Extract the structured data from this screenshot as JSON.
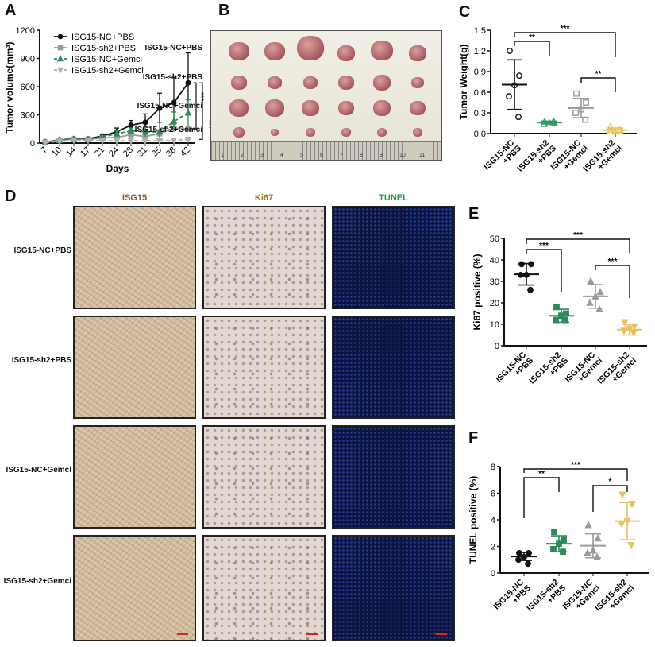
{
  "panels": {
    "A": "A",
    "B": "B",
    "C": "C",
    "D": "D",
    "E": "E",
    "F": "F"
  },
  "groups": [
    "ISG15-NC+PBS",
    "ISG15-sh2+PBS",
    "ISG15-NC+Gemci",
    "ISG15-sh2+Gemci"
  ],
  "panel_b": {
    "ruler_numbers": [
      "1",
      "2",
      "3",
      "4",
      "5",
      "6",
      "7",
      "8",
      "9",
      "10",
      "11"
    ]
  },
  "panel_d": {
    "columns": [
      "ISG15",
      "Ki67",
      "TUNEL"
    ],
    "column_colors": [
      "#8a5a2a",
      "#9a7a20",
      "#2a9a3a"
    ],
    "rows": [
      "ISG15-NC+PBS",
      "ISG15-sh2+PBS",
      "ISG15-NC+Gemci",
      "ISG15-sh2+Gemci"
    ]
  },
  "chart_data": [
    {
      "id": "A",
      "type": "line",
      "xlabel": "Days",
      "ylabel": "Tumor volume(mm³)",
      "ylim": [
        0,
        1200
      ],
      "yticks": [
        0,
        300,
        600,
        900,
        1200
      ],
      "categories": [
        "7",
        "10",
        "14",
        "17",
        "21",
        "24",
        "28",
        "31",
        "35",
        "38",
        "42"
      ],
      "legend": "top-left",
      "series": [
        {
          "name": "ISG15-NC+PBS",
          "color": "#111111",
          "marker": "circle",
          "dash": false,
          "values": [
            10,
            35,
            45,
            45,
            75,
            120,
            190,
            220,
            370,
            430,
            640
          ],
          "err": [
            5,
            10,
            10,
            10,
            20,
            40,
            50,
            90,
            160,
            270,
            320
          ]
        },
        {
          "name": "ISG15-sh2+PBS",
          "color": "#9a9a9a",
          "marker": "square",
          "dash": false,
          "values": [
            10,
            30,
            40,
            40,
            55,
            60,
            90,
            70,
            100,
            160,
            150
          ],
          "err": [
            5,
            8,
            8,
            8,
            15,
            20,
            25,
            25,
            30,
            40,
            20
          ]
        },
        {
          "name": "ISG15-NC+Gemci",
          "color": "#2a8a5a",
          "marker": "triangle",
          "dash": true,
          "values": [
            10,
            30,
            40,
            40,
            65,
            100,
            130,
            120,
            120,
            230,
            320
          ],
          "err": [
            5,
            8,
            8,
            8,
            15,
            30,
            30,
            50,
            100,
            100,
            140
          ]
        },
        {
          "name": "ISG15-sh2+Gemci",
          "color": "#b0b0b0",
          "marker": "tri-down",
          "dash": true,
          "values": [
            5,
            20,
            30,
            30,
            25,
            25,
            25,
            25,
            25,
            30,
            40
          ],
          "err": [
            3,
            5,
            5,
            5,
            5,
            5,
            5,
            5,
            5,
            10,
            20
          ]
        }
      ],
      "significance": [
        "***",
        "***"
      ]
    },
    {
      "id": "C",
      "type": "scatter",
      "ylabel": "Tumor Weight(g)",
      "ylim": [
        0,
        1.5
      ],
      "yticks": [
        "0.0",
        "0.3",
        "0.6",
        "0.9",
        "1.2",
        "1.5"
      ],
      "categories": [
        [
          "ISG15-NC",
          "+PBS"
        ],
        [
          "ISG15-sh2",
          "+PBS"
        ],
        [
          "ISG15-NC",
          "+Gemci"
        ],
        [
          "ISG15-sh2",
          "+Gemci"
        ]
      ],
      "groups": [
        {
          "color": "#111111",
          "marker": "circle-open",
          "points": [
            1.2,
            0.84,
            0.7,
            0.54,
            0.24
          ],
          "mean": 0.71,
          "sd": 0.36
        },
        {
          "color": "#2a9a5a",
          "marker": "triangle-open",
          "points": [
            0.17,
            0.16,
            0.15,
            0.14,
            0.17
          ],
          "mean": 0.16,
          "sd": 0.02
        },
        {
          "color": "#9a9a9a",
          "marker": "square-open",
          "points": [
            0.58,
            0.45,
            0.35,
            0.3,
            0.2
          ],
          "mean": 0.37,
          "sd": 0.14
        },
        {
          "color": "#e8c060",
          "marker": "triangle-open",
          "points": [
            0.1,
            0.05,
            0.04,
            0.03,
            0.04
          ],
          "mean": 0.05,
          "sd": 0.03
        }
      ],
      "brackets": [
        {
          "from": 0,
          "to": 1,
          "label": "**"
        },
        {
          "from": 0,
          "to": 3,
          "label": "***"
        },
        {
          "from": 2,
          "to": 3,
          "label": "**"
        }
      ]
    },
    {
      "id": "E",
      "type": "scatter",
      "ylabel": "Ki67 positive (%)",
      "ylim": [
        0,
        50
      ],
      "yticks": [
        "0",
        "10",
        "20",
        "30",
        "40",
        "50"
      ],
      "categories": [
        [
          "ISG15-NC",
          "+PBS"
        ],
        [
          "ISG15-sh2",
          "+PBS"
        ],
        [
          "ISG15-NC",
          "+Gemci"
        ],
        [
          "ISG15-sh2",
          "+Gemci"
        ]
      ],
      "groups": [
        {
          "color": "#111111",
          "marker": "circle",
          "points": [
            38,
            38,
            33,
            33,
            26
          ],
          "mean": 33.3,
          "sd": 5
        },
        {
          "color": "#2a8a5a",
          "marker": "square",
          "points": [
            18,
            15,
            14,
            12,
            12
          ],
          "mean": 14,
          "sd": 3
        },
        {
          "color": "#9a9a9a",
          "marker": "triangle",
          "points": [
            30,
            25,
            23,
            20,
            17
          ],
          "mean": 23,
          "sd": 5.5
        },
        {
          "color": "#e8c060",
          "marker": "tri-down",
          "points": [
            11,
            9,
            8,
            7,
            6
          ],
          "mean": 7.5,
          "sd": 2.5
        }
      ],
      "brackets": [
        {
          "from": 0,
          "to": 1,
          "label": "***"
        },
        {
          "from": 0,
          "to": 3,
          "label": "***"
        },
        {
          "from": 2,
          "to": 3,
          "label": "***"
        }
      ]
    },
    {
      "id": "F",
      "type": "scatter",
      "ylabel": "TUNEL positive (%)",
      "ylim": [
        0,
        8
      ],
      "yticks": [
        "0",
        "2",
        "4",
        "6",
        "8"
      ],
      "categories": [
        [
          "ISG15-NC",
          "+PBS"
        ],
        [
          "ISG15-sh2",
          "+PBS"
        ],
        [
          "ISG15-NC",
          "+Gemci"
        ],
        [
          "ISG15-sh2",
          "+Gemci"
        ]
      ],
      "groups": [
        {
          "color": "#111111",
          "marker": "circle",
          "points": [
            1.5,
            1.5,
            1.2,
            1.0,
            0.7
          ],
          "mean": 1.25,
          "sd": 0.3
        },
        {
          "color": "#2a8a5a",
          "marker": "square",
          "points": [
            3.1,
            2.5,
            2.2,
            1.8,
            1.6
          ],
          "mean": 2.2,
          "sd": 0.6
        },
        {
          "color": "#9a9a9a",
          "marker": "triangle",
          "points": [
            3.6,
            2.6,
            1.7,
            1.5,
            1.2
          ],
          "mean": 2.05,
          "sd": 0.9
        },
        {
          "color": "#e8c060",
          "marker": "tri-down",
          "points": [
            5.9,
            5.2,
            3.9,
            3.7,
            2.1
          ],
          "mean": 3.9,
          "sd": 1.4
        }
      ],
      "brackets": [
        {
          "from": 0,
          "to": 1,
          "label": "**"
        },
        {
          "from": 0,
          "to": 3,
          "label": "***"
        },
        {
          "from": 2,
          "to": 3,
          "label": "*"
        }
      ]
    }
  ]
}
